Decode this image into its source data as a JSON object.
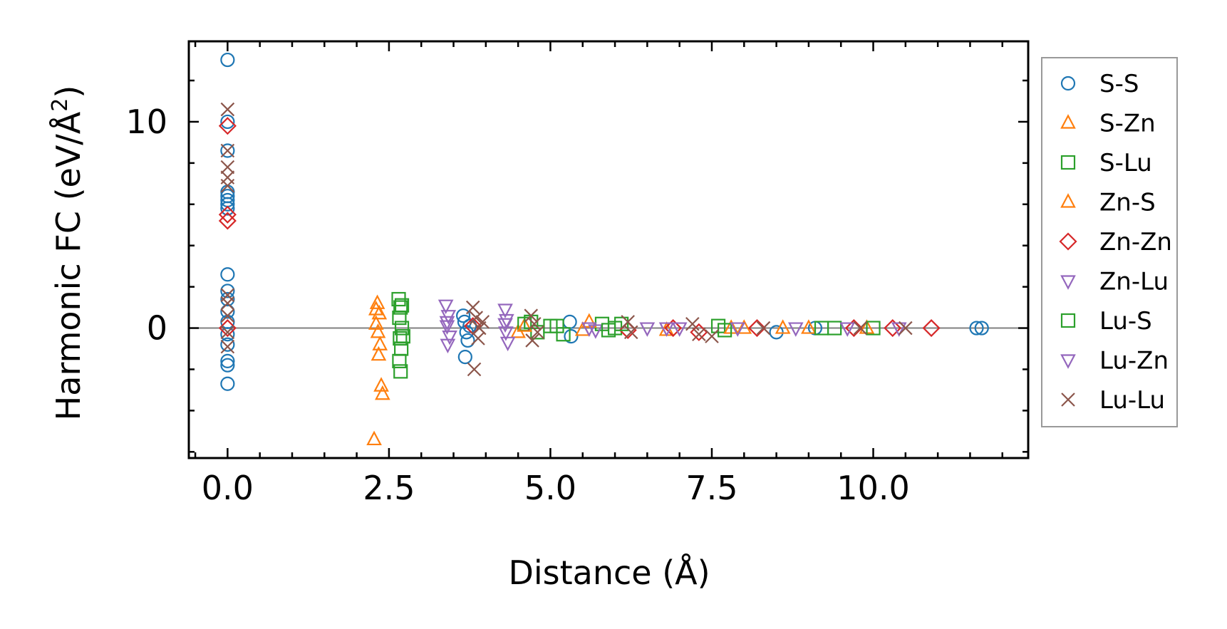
{
  "chart_data": {
    "type": "scatter",
    "title": "",
    "xlabel": "Distance (Å)",
    "ylabel_main": "Harmonic FC (eV/Å",
    "ylabel_sup": "2",
    "ylabel_close": ")",
    "xlim": [
      -0.6,
      12.4
    ],
    "ylim": [
      -6.3,
      13.9
    ],
    "xticks": [
      0.0,
      2.5,
      5.0,
      7.5,
      10.0
    ],
    "xtick_labels": [
      "0.0",
      "2.5",
      "5.0",
      "7.5",
      "10.0"
    ],
    "yticks": [
      0,
      10
    ],
    "ytick_labels": [
      "0",
      "10"
    ],
    "zero_line": true,
    "grid": false,
    "legend_position": "outside-right",
    "series": [
      {
        "name": "S-S",
        "marker": "circle",
        "color": "#1f77b4",
        "points": [
          [
            0.0,
            13.0
          ],
          [
            0.0,
            10.0
          ],
          [
            0.0,
            8.6
          ],
          [
            0.0,
            6.6
          ],
          [
            0.0,
            6.4
          ],
          [
            0.0,
            6.2
          ],
          [
            0.0,
            6.0
          ],
          [
            0.0,
            5.8
          ],
          [
            0.0,
            2.6
          ],
          [
            0.0,
            1.8
          ],
          [
            0.0,
            1.4
          ],
          [
            0.0,
            0.8
          ],
          [
            0.0,
            0.3
          ],
          [
            0.0,
            -0.3
          ],
          [
            0.0,
            -0.8
          ],
          [
            0.0,
            -1.6
          ],
          [
            0.0,
            -1.8
          ],
          [
            0.0,
            -2.7
          ],
          [
            3.65,
            0.6
          ],
          [
            3.67,
            0.3
          ],
          [
            3.7,
            -0.2
          ],
          [
            3.72,
            -0.6
          ],
          [
            3.68,
            -1.4
          ],
          [
            3.75,
            0.1
          ],
          [
            5.3,
            0.3
          ],
          [
            5.32,
            -0.4
          ],
          [
            8.5,
            -0.2
          ],
          [
            9.1,
            0.0
          ],
          [
            11.6,
            0.0
          ],
          [
            11.68,
            0.0
          ]
        ]
      },
      {
        "name": "S-Zn",
        "marker": "triangle-up",
        "color": "#ff7f0e",
        "points": [
          [
            2.32,
            1.2
          ],
          [
            2.35,
            0.7
          ],
          [
            2.3,
            0.2
          ],
          [
            2.33,
            -0.2
          ],
          [
            2.36,
            -0.8
          ],
          [
            2.34,
            -1.3
          ],
          [
            2.38,
            -2.8
          ],
          [
            2.4,
            -3.2
          ],
          [
            2.27,
            -5.4
          ],
          [
            4.5,
            -0.2
          ],
          [
            5.5,
            -0.1
          ],
          [
            6.8,
            -0.1
          ],
          [
            8.0,
            0.0
          ],
          [
            9.0,
            0.0
          ]
        ]
      },
      {
        "name": "S-Lu",
        "marker": "square",
        "color": "#2ca02c",
        "points": [
          [
            2.65,
            1.4
          ],
          [
            2.68,
            1.0
          ],
          [
            2.66,
            0.5
          ],
          [
            2.7,
            0.0
          ],
          [
            2.67,
            -0.5
          ],
          [
            2.69,
            -1.0
          ],
          [
            2.66,
            -1.6
          ],
          [
            2.68,
            -2.1
          ],
          [
            4.6,
            0.2
          ],
          [
            4.8,
            -0.2
          ],
          [
            5.0,
            0.1
          ],
          [
            5.2,
            -0.3
          ],
          [
            5.8,
            0.2
          ],
          [
            6.0,
            0.0
          ],
          [
            7.6,
            0.1
          ],
          [
            9.4,
            0.0
          ]
        ]
      },
      {
        "name": "Zn-S",
        "marker": "triangle-up",
        "color": "#ff7f0e",
        "points": [
          [
            2.3,
            0.9
          ],
          [
            4.6,
            0.1
          ],
          [
            5.6,
            0.3
          ],
          [
            7.8,
            0.0
          ],
          [
            8.6,
            0.0
          ],
          [
            9.9,
            0.0
          ]
        ]
      },
      {
        "name": "Zn-Zn",
        "marker": "diamond",
        "color": "#d62728",
        "points": [
          [
            0.0,
            9.8
          ],
          [
            0.0,
            5.5
          ],
          [
            0.0,
            5.2
          ],
          [
            0.0,
            0.0
          ],
          [
            3.8,
            0.1
          ],
          [
            6.2,
            -0.1
          ],
          [
            6.9,
            0.0
          ],
          [
            7.3,
            -0.2
          ],
          [
            8.2,
            0.0
          ],
          [
            9.7,
            0.0
          ],
          [
            10.3,
            0.0
          ],
          [
            10.9,
            0.0
          ]
        ]
      },
      {
        "name": "Zn-Lu",
        "marker": "triangle-down",
        "color": "#9467bd",
        "points": [
          [
            3.38,
            1.1
          ],
          [
            3.42,
            0.6
          ],
          [
            3.4,
            0.1
          ],
          [
            3.44,
            -0.4
          ],
          [
            3.41,
            -0.8
          ],
          [
            4.3,
            0.9
          ],
          [
            4.32,
            0.4
          ],
          [
            4.31,
            -0.2
          ],
          [
            4.34,
            -0.7
          ],
          [
            5.7,
            -0.1
          ],
          [
            6.5,
            0.0
          ],
          [
            7.0,
            0.0
          ],
          [
            8.8,
            0.0
          ],
          [
            10.4,
            0.0
          ]
        ]
      },
      {
        "name": "Lu-S",
        "marker": "square",
        "color": "#2ca02c",
        "points": [
          [
            2.7,
            1.1
          ],
          [
            2.72,
            -0.4
          ],
          [
            4.7,
            0.3
          ],
          [
            5.1,
            0.1
          ],
          [
            5.9,
            -0.1
          ],
          [
            6.1,
            0.2
          ],
          [
            7.7,
            -0.1
          ],
          [
            9.2,
            0.0
          ],
          [
            10.0,
            0.0
          ]
        ]
      },
      {
        "name": "Lu-Zn",
        "marker": "triangle-down",
        "color": "#9467bd",
        "points": [
          [
            3.4,
            0.3
          ],
          [
            4.3,
            0.2
          ],
          [
            5.6,
            0.0
          ],
          [
            6.8,
            0.0
          ],
          [
            7.9,
            0.0
          ],
          [
            9.6,
            0.0
          ]
        ]
      },
      {
        "name": "Lu-Lu",
        "marker": "x",
        "color": "#8c564b",
        "points": [
          [
            0.0,
            10.6
          ],
          [
            0.0,
            8.6
          ],
          [
            0.0,
            7.8
          ],
          [
            0.0,
            7.3
          ],
          [
            0.0,
            6.9
          ],
          [
            0.0,
            1.6
          ],
          [
            0.0,
            1.2
          ],
          [
            0.0,
            0.6
          ],
          [
            0.0,
            -0.2
          ],
          [
            0.0,
            -0.9
          ],
          [
            3.8,
            1.0
          ],
          [
            3.85,
            0.5
          ],
          [
            3.9,
            0.0
          ],
          [
            3.88,
            -0.5
          ],
          [
            3.82,
            -2.0
          ],
          [
            3.95,
            0.3
          ],
          [
            4.7,
            0.6
          ],
          [
            4.75,
            0.2
          ],
          [
            4.8,
            -0.2
          ],
          [
            4.72,
            -0.6
          ],
          [
            6.2,
            0.3
          ],
          [
            6.25,
            -0.2
          ],
          [
            7.2,
            0.2
          ],
          [
            7.3,
            -0.3
          ],
          [
            7.5,
            -0.4
          ],
          [
            8.3,
            0.0
          ],
          [
            9.8,
            0.0
          ],
          [
            10.5,
            0.0
          ]
        ]
      }
    ]
  }
}
